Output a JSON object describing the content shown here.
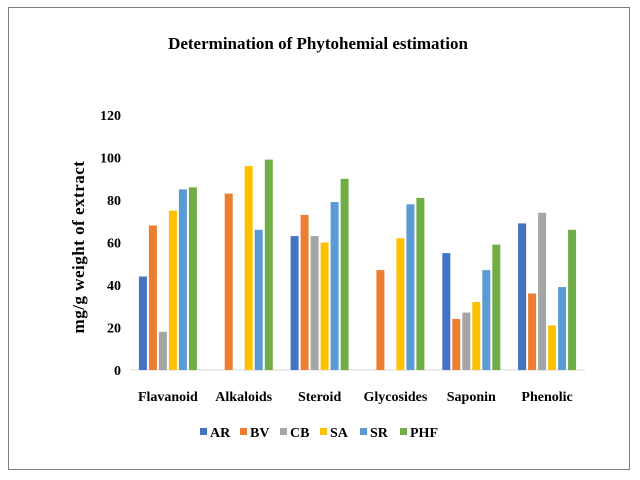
{
  "chart_data": {
    "type": "bar",
    "title": "Determination of Phytohemial estimation",
    "xlabel": "",
    "ylabel": "mg/g weight of extract",
    "ylim": [
      0,
      120
    ],
    "yticks": [
      0,
      20,
      40,
      60,
      80,
      100,
      120
    ],
    "grid": false,
    "legend_position": "bottom",
    "categories": [
      "Flavanoid",
      "Alkaloids",
      "Steroid",
      "Glycosides",
      "Saponin",
      "Phenolic"
    ],
    "series": [
      {
        "name": "AR",
        "color": "#4472C4",
        "values": [
          44,
          0,
          63,
          0,
          55,
          69
        ]
      },
      {
        "name": "BV",
        "color": "#ED7D31",
        "values": [
          68,
          83,
          73,
          47,
          24,
          36
        ]
      },
      {
        "name": "CB",
        "color": "#A5A5A5",
        "values": [
          18,
          0,
          63,
          0,
          27,
          74
        ]
      },
      {
        "name": "SA",
        "color": "#FFC000",
        "values": [
          75,
          96,
          60,
          62,
          32,
          21
        ]
      },
      {
        "name": "SR",
        "color": "#5B9BD5",
        "values": [
          85,
          66,
          79,
          78,
          47,
          39
        ]
      },
      {
        "name": "PHF",
        "color": "#70AD47",
        "values": [
          86,
          99,
          90,
          81,
          59,
          66
        ]
      }
    ]
  }
}
